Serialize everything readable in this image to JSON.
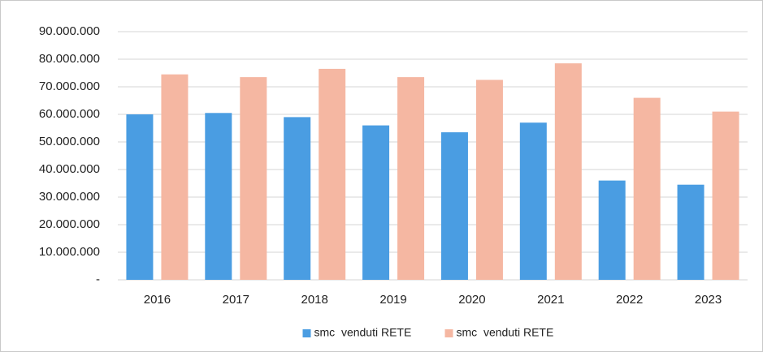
{
  "chart_data": {
    "type": "bar",
    "categories": [
      "2016",
      "2017",
      "2018",
      "2019",
      "2020",
      "2021",
      "2022",
      "2023"
    ],
    "series": [
      {
        "name": "smc  venduti RETE",
        "color": "#4a9de2",
        "values": [
          60000000,
          60500000,
          59000000,
          56000000,
          53500000,
          57000000,
          36000000,
          34500000
        ]
      },
      {
        "name": "smc  venduti RETE",
        "color": "#f5b7a2",
        "values": [
          74500000,
          73500000,
          76500000,
          73500000,
          72500000,
          78500000,
          66000000,
          61000000
        ]
      }
    ],
    "ylim": [
      0,
      90000000
    ],
    "yticks": [
      {
        "value": 0,
        "label": "-"
      },
      {
        "value": 10000000,
        "label": "10.000.000"
      },
      {
        "value": 20000000,
        "label": "20.000.000"
      },
      {
        "value": 30000000,
        "label": "30.000.000"
      },
      {
        "value": 40000000,
        "label": "40.000.000"
      },
      {
        "value": 50000000,
        "label": "50.000.000"
      },
      {
        "value": 60000000,
        "label": "60.000.000"
      },
      {
        "value": 70000000,
        "label": "70.000.000"
      },
      {
        "value": 80000000,
        "label": "80.000.000"
      },
      {
        "value": 90000000,
        "label": "90.000.000"
      }
    ],
    "grid": true,
    "legend": "bottom"
  }
}
